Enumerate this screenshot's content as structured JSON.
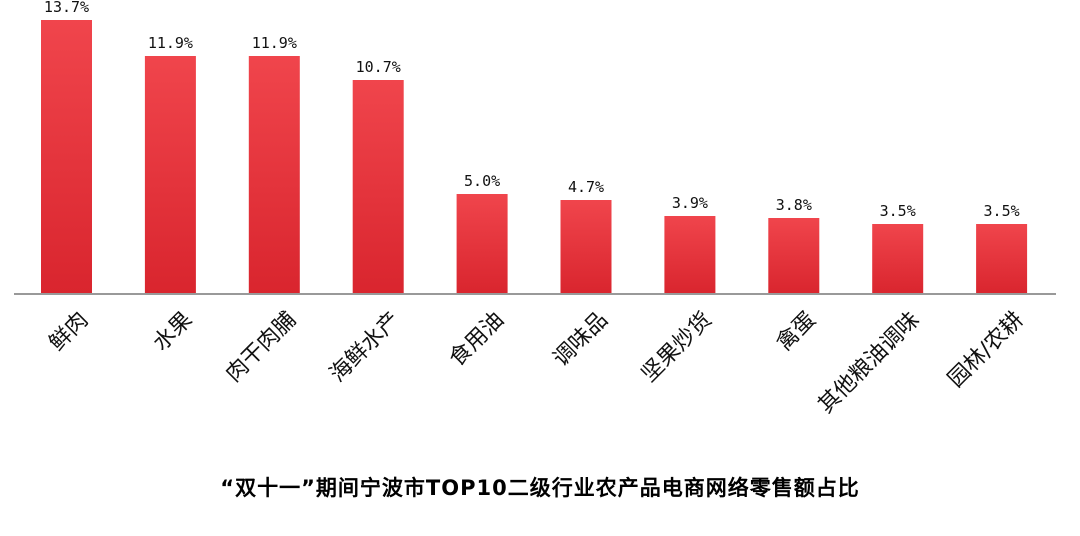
{
  "chart_data": {
    "type": "bar",
    "title": "“双十一”期间宁波市TOP10二级行业农产品电商网络零售额占比",
    "categories": [
      "鲜肉",
      "水果",
      "肉干肉脯",
      "海鲜水产",
      "食用油",
      "调味品",
      "坚果炒货",
      "禽蛋",
      "其他粮油调味",
      "园林/农耕"
    ],
    "values": [
      13.7,
      11.9,
      11.9,
      10.7,
      5.0,
      4.7,
      3.9,
      3.8,
      3.5,
      3.5
    ],
    "value_labels": [
      "13.7%",
      "11.9%",
      "11.9%",
      "10.7%",
      "5.0%",
      "4.7%",
      "3.9%",
      "3.8%",
      "3.5%",
      "3.5%"
    ],
    "xlabel": "",
    "ylabel": "",
    "ylim": [
      0,
      13.7
    ],
    "grid": false,
    "legend": "none",
    "colors": {
      "bar_top": "#f0454c",
      "bar_bottom": "#d9252e",
      "axis": "#999999"
    }
  }
}
